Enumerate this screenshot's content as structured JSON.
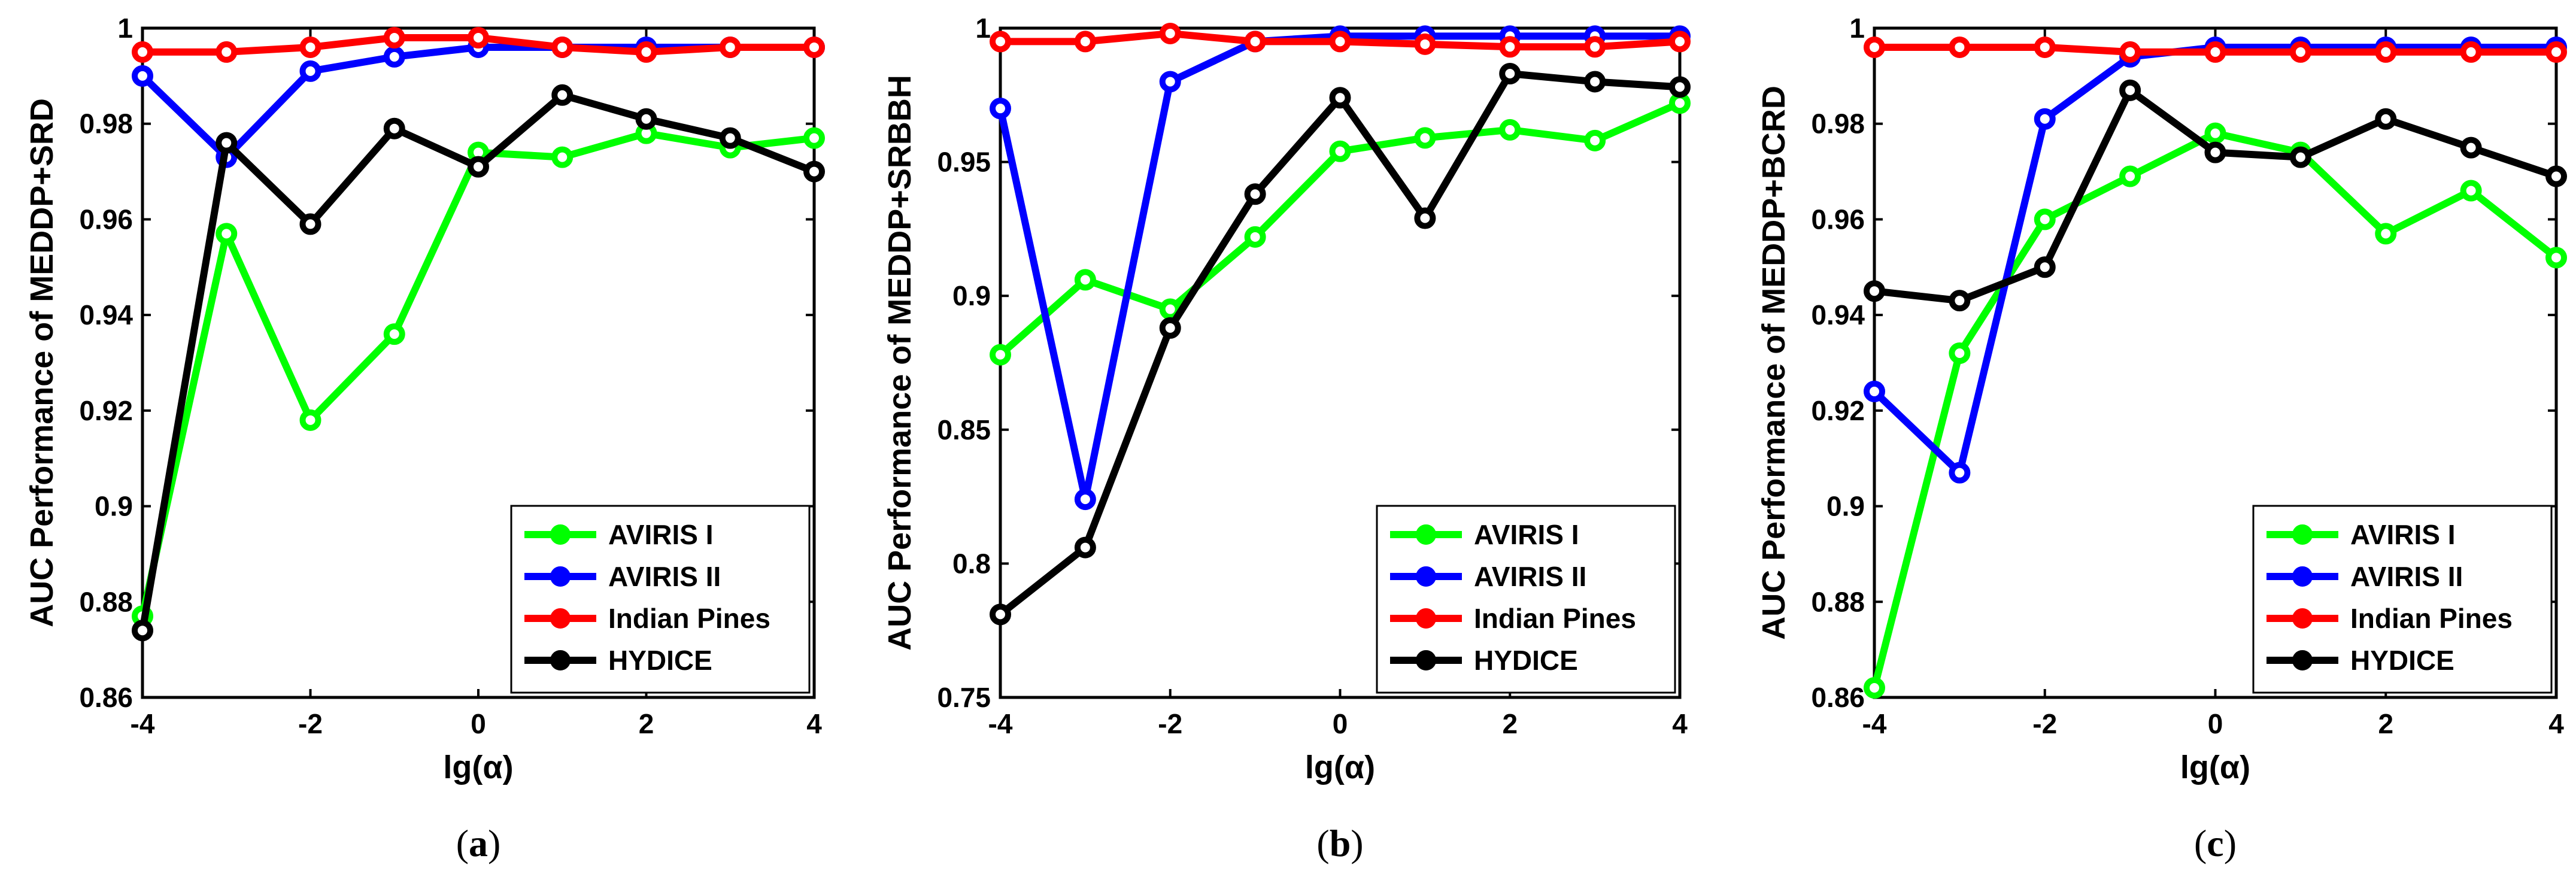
{
  "colors": {
    "AVIRIS I": "#00ff00",
    "AVIRIS II": "#0000ff",
    "Indian Pines": "#ff0000",
    "HYDICE": "#000000"
  },
  "chart_data": [
    {
      "type": "line",
      "panel_label": "a",
      "xlabel": "lg(α)",
      "ylabel": "AUC Performance of MEDDP+SRD",
      "x": [
        -4,
        -3,
        -2,
        -1,
        0,
        1,
        2,
        3,
        4
      ],
      "xlim": [
        -4,
        4
      ],
      "ylim": [
        0.86,
        1.0
      ],
      "xticks": [
        "-4",
        "-2",
        "0",
        "2",
        "4"
      ],
      "yticks": [
        "0.86",
        "0.88",
        "0.9",
        "0.92",
        "0.94",
        "0.96",
        "0.98",
        "1"
      ],
      "legend_position": "bottom-right",
      "series": [
        {
          "name": "AVIRIS I",
          "values": [
            0.877,
            0.957,
            0.918,
            0.936,
            0.974,
            0.973,
            0.978,
            0.975,
            0.977
          ]
        },
        {
          "name": "AVIRIS II",
          "values": [
            0.99,
            0.973,
            0.991,
            0.994,
            0.996,
            0.996,
            0.996,
            0.996,
            0.996
          ]
        },
        {
          "name": "Indian Pines",
          "values": [
            0.995,
            0.995,
            0.996,
            0.998,
            0.998,
            0.996,
            0.995,
            0.996,
            0.996
          ]
        },
        {
          "name": "HYDICE",
          "values": [
            0.874,
            0.976,
            0.959,
            0.979,
            0.971,
            0.986,
            0.981,
            0.977,
            0.97
          ]
        }
      ]
    },
    {
      "type": "line",
      "panel_label": "b",
      "xlabel": "lg(α)",
      "ylabel": "AUC Performance of MEDDP+SRBBH",
      "x": [
        -4,
        -3,
        -2,
        -1,
        0,
        1,
        2,
        3,
        4
      ],
      "xlim": [
        -4,
        4
      ],
      "ylim": [
        0.75,
        1.0
      ],
      "xticks": [
        "-4",
        "-2",
        "0",
        "2",
        "4"
      ],
      "yticks": [
        "0.75",
        "0.8",
        "0.85",
        "0.9",
        "0.95",
        "1"
      ],
      "legend_position": "bottom-right",
      "series": [
        {
          "name": "AVIRIS I",
          "values": [
            0.878,
            0.906,
            0.895,
            0.922,
            0.954,
            0.959,
            0.962,
            0.958,
            0.972
          ]
        },
        {
          "name": "AVIRIS II",
          "values": [
            0.97,
            0.824,
            0.98,
            0.995,
            0.997,
            0.997,
            0.997,
            0.997,
            0.997
          ]
        },
        {
          "name": "Indian Pines",
          "values": [
            0.995,
            0.995,
            0.998,
            0.995,
            0.995,
            0.994,
            0.993,
            0.993,
            0.995
          ]
        },
        {
          "name": "HYDICE",
          "values": [
            0.781,
            0.806,
            0.888,
            0.938,
            0.974,
            0.929,
            0.983,
            0.98,
            0.978
          ]
        }
      ]
    },
    {
      "type": "line",
      "panel_label": "c",
      "xlabel": "lg(α)",
      "ylabel": "AUC Performance of MEDDP+BCRD",
      "x": [
        -4,
        -3,
        -2,
        -1,
        0,
        1,
        2,
        3,
        4
      ],
      "xlim": [
        -4,
        4
      ],
      "ylim": [
        0.86,
        1.0
      ],
      "xticks": [
        "-4",
        "-2",
        "0",
        "2",
        "4"
      ],
      "yticks": [
        "0.86",
        "0.88",
        "0.9",
        "0.92",
        "0.94",
        "0.96",
        "0.98",
        "1"
      ],
      "legend_position": "bottom-right",
      "series": [
        {
          "name": "AVIRIS I",
          "values": [
            0.862,
            0.932,
            0.96,
            0.969,
            0.978,
            0.974,
            0.957,
            0.966,
            0.952
          ]
        },
        {
          "name": "AVIRIS II",
          "values": [
            0.924,
            0.907,
            0.981,
            0.994,
            0.996,
            0.996,
            0.996,
            0.996,
            0.996
          ]
        },
        {
          "name": "Indian Pines",
          "values": [
            0.996,
            0.996,
            0.996,
            0.995,
            0.995,
            0.995,
            0.995,
            0.995,
            0.995
          ]
        },
        {
          "name": "HYDICE",
          "values": [
            0.945,
            0.943,
            0.95,
            0.987,
            0.974,
            0.973,
            0.981,
            0.975,
            0.969
          ]
        }
      ]
    }
  ]
}
